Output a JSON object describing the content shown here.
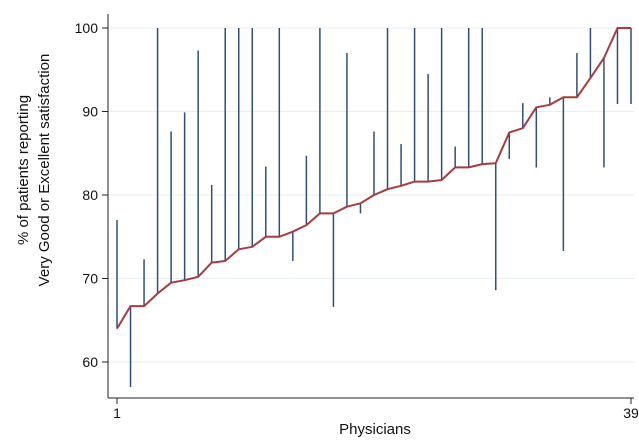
{
  "chart_data": {
    "type": "line",
    "title": "",
    "xlabel": "Physicians",
    "ylabel_lines": [
      "% of patients reporting",
      "Very Good or Excellent satisfaction"
    ],
    "xlim": [
      1,
      39
    ],
    "ylim": [
      55,
      101
    ],
    "x_ticks": [
      {
        "value": 1,
        "label": "1"
      },
      {
        "value": 39,
        "label": "39"
      }
    ],
    "y_ticks": [
      {
        "value": 60,
        "label": "60"
      },
      {
        "value": 70,
        "label": "70"
      },
      {
        "value": 80,
        "label": "80"
      },
      {
        "value": 90,
        "label": "90"
      },
      {
        "value": 100,
        "label": "100"
      }
    ],
    "grid": true,
    "legend": "none",
    "colors": {
      "line": "#a83c3c",
      "interval": "#2f4f78",
      "grid": "#e6eef3",
      "axis": "#222222"
    },
    "series": [
      {
        "x": [
          1,
          2,
          3,
          4,
          5,
          6,
          7,
          8,
          9,
          10,
          11,
          12,
          13,
          14,
          15,
          16,
          17,
          18,
          19,
          20,
          21,
          22,
          23,
          24,
          25,
          26,
          27,
          28,
          29,
          30,
          31,
          32,
          33,
          34,
          35,
          36,
          37,
          38,
          39
        ],
        "values": [
          64.0,
          66.7,
          66.7,
          68.2,
          69.5,
          69.8,
          70.2,
          71.9,
          72.1,
          73.5,
          73.8,
          75.0,
          75.0,
          75.6,
          76.4,
          77.8,
          77.8,
          78.6,
          79.0,
          80.0,
          80.7,
          81.1,
          81.6,
          81.6,
          81.8,
          83.3,
          83.3,
          83.7,
          83.8,
          87.5,
          88.0,
          90.5,
          90.8,
          91.7,
          91.7,
          94.0,
          96.4,
          100.0,
          100.0
        ]
      }
    ],
    "intervals": [
      {
        "x": 1,
        "low": 64,
        "high": 77
      },
      {
        "x": 2,
        "low": 57,
        "high": 66.7
      },
      {
        "x": 3,
        "low": 66.7,
        "high": 72.3
      },
      {
        "x": 4,
        "low": 68.2,
        "high": 100
      },
      {
        "x": 5,
        "low": 69.5,
        "high": 87.6
      },
      {
        "x": 6,
        "low": 69.8,
        "high": 89.9
      },
      {
        "x": 7,
        "low": 70.2,
        "high": 97.3
      },
      {
        "x": 8,
        "low": 71.9,
        "high": 81.2
      },
      {
        "x": 9,
        "low": 72.1,
        "high": 100
      },
      {
        "x": 10,
        "low": 73.5,
        "high": 100
      },
      {
        "x": 11,
        "low": 73.8,
        "high": 100
      },
      {
        "x": 12,
        "low": 75.0,
        "high": 83.4
      },
      {
        "x": 13,
        "low": 75.0,
        "high": 100
      },
      {
        "x": 14,
        "low": 72.1,
        "high": 75.6
      },
      {
        "x": 15,
        "low": 76.4,
        "high": 84.7
      },
      {
        "x": 16,
        "low": 77.8,
        "high": 100
      },
      {
        "x": 17,
        "low": 66.6,
        "high": 77.8
      },
      {
        "x": 18,
        "low": 78.6,
        "high": 97.0
      },
      {
        "x": 19,
        "low": 77.8,
        "high": 79.0
      },
      {
        "x": 20,
        "low": 80.0,
        "high": 87.6
      },
      {
        "x": 21,
        "low": 80.7,
        "high": 100
      },
      {
        "x": 22,
        "low": 81.1,
        "high": 86.1
      },
      {
        "x": 23,
        "low": 81.6,
        "high": 100
      },
      {
        "x": 24,
        "low": 81.6,
        "high": 94.5
      },
      {
        "x": 25,
        "low": 81.8,
        "high": 100
      },
      {
        "x": 26,
        "low": 83.3,
        "high": 85.8
      },
      {
        "x": 27,
        "low": 83.3,
        "high": 100
      },
      {
        "x": 28,
        "low": 83.7,
        "high": 100
      },
      {
        "x": 29,
        "low": 68.6,
        "high": 83.8
      },
      {
        "x": 30,
        "low": 84.3,
        "high": 87.5
      },
      {
        "x": 31,
        "low": 88.0,
        "high": 91.0
      },
      {
        "x": 32,
        "low": 83.3,
        "high": 90.5
      },
      {
        "x": 33,
        "low": 90.8,
        "high": 91.7
      },
      {
        "x": 34,
        "low": 73.3,
        "high": 91.7
      },
      {
        "x": 35,
        "low": 91.7,
        "high": 97.0
      },
      {
        "x": 36,
        "low": 94.0,
        "high": 100
      },
      {
        "x": 37,
        "low": 83.3,
        "high": 96.4
      },
      {
        "x": 38,
        "low": 90.9,
        "high": 100
      },
      {
        "x": 39,
        "low": 90.9,
        "high": 100
      }
    ]
  }
}
